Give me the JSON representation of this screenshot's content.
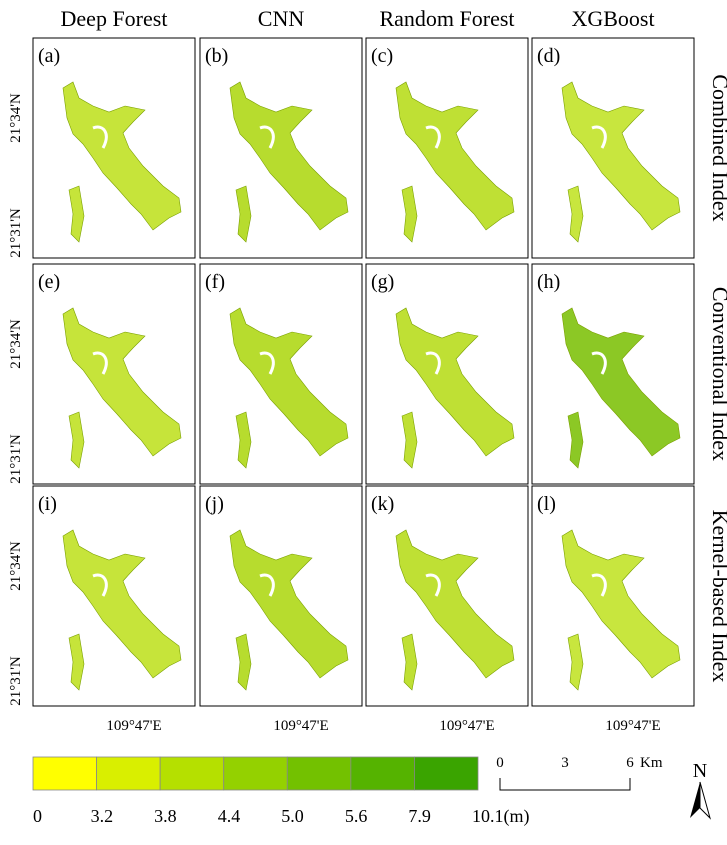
{
  "columns": [
    "Deep Forest",
    "CNN",
    "Random Forest",
    "XGBoost"
  ],
  "rows": [
    "Combined Index",
    "Conventional Index",
    "Kernel-based Index"
  ],
  "panel_labels": [
    "(a)",
    "(b)",
    "(c)",
    "(d)",
    "(e)",
    "(f)",
    "(g)",
    "(h)",
    "(i)",
    "(j)",
    "(k)",
    "(l)"
  ],
  "lat_labels": [
    "21°34'N",
    "21°31'N"
  ],
  "lon_label": "109°47'E",
  "colorbar": {
    "ticks": [
      "0",
      "3.2",
      "3.8",
      "4.4",
      "5.0",
      "5.6",
      "7.9",
      "10.1(m)"
    ],
    "colors": [
      "#ffff00",
      "#d9ef00",
      "#b5e000",
      "#94d100",
      "#73c100",
      "#55b300",
      "#3aa400"
    ]
  },
  "scale_bar": {
    "ticks": [
      "0",
      "3",
      "6"
    ],
    "unit": "Km"
  },
  "north": "N"
}
